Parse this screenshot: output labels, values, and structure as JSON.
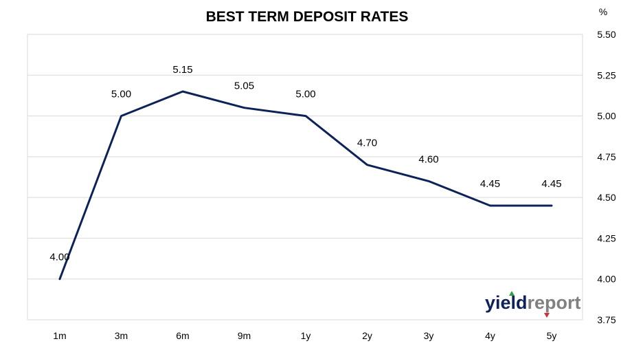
{
  "chart_data": {
    "type": "line",
    "title": "BEST TERM DEPOSIT RATES",
    "y_unit_label": "%",
    "categories": [
      "1m",
      "3m",
      "6m",
      "9m",
      "1y",
      "2y",
      "3y",
      "4y",
      "5y"
    ],
    "series": [
      {
        "values": [
          4.0,
          5.0,
          5.15,
          5.05,
          5.0,
          4.7,
          4.6,
          4.45,
          4.45
        ],
        "data_labels": [
          "4.00",
          "5.00",
          "5.15",
          "5.05",
          "5.00",
          "4.70",
          "4.60",
          "4.45",
          "4.45"
        ],
        "color": "#0d2258"
      }
    ],
    "ylim": [
      3.75,
      5.5
    ],
    "y_ticks": [
      3.75,
      4.0,
      4.25,
      4.5,
      4.75,
      5.0,
      5.25,
      5.5
    ],
    "y_tick_labels": [
      "3.75",
      "4.00",
      "4.25",
      "4.50",
      "4.75",
      "5.00",
      "5.25",
      "5.50"
    ],
    "y_axis_side": "right",
    "grid": true,
    "legend": false
  },
  "logo": {
    "text_part1": "yield",
    "text_part2": "report",
    "color_part1": "#0d2258",
    "color_part2": "#808080",
    "accent_up": "#2e9e48",
    "accent_down": "#d03030"
  },
  "colors": {
    "gridline": "#d9d9d9",
    "plot_border": "#d9d9d9"
  }
}
